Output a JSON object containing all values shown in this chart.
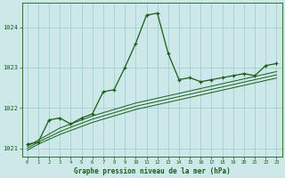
{
  "bg_color": "#cce8e8",
  "grid_color": "#99cccc",
  "line_color": "#1a5c1a",
  "title": "Graphe pression niveau de la mer (hPa)",
  "xlim": [
    -0.5,
    23.5
  ],
  "ylim": [
    1020.8,
    1024.6
  ],
  "yticks": [
    1021,
    1022,
    1023,
    1024
  ],
  "xticks": [
    0,
    1,
    2,
    3,
    4,
    5,
    6,
    7,
    8,
    9,
    10,
    11,
    12,
    13,
    14,
    15,
    16,
    17,
    18,
    19,
    20,
    21,
    22,
    23
  ],
  "series_main": [
    1021.1,
    1021.15,
    1021.7,
    1021.75,
    1021.6,
    1021.75,
    1021.85,
    1022.4,
    1022.45,
    1023.0,
    1023.6,
    1024.3,
    1024.35,
    1023.35,
    1022.7,
    1022.75,
    1022.65,
    1022.7,
    1022.75,
    1022.8,
    1022.85,
    1022.8,
    1023.05,
    1023.1
  ],
  "series_trend1": [
    1021.05,
    1021.2,
    1021.35,
    1021.5,
    1021.6,
    1021.7,
    1021.8,
    1021.88,
    1021.96,
    1022.04,
    1022.12,
    1022.18,
    1022.24,
    1022.3,
    1022.36,
    1022.42,
    1022.48,
    1022.54,
    1022.6,
    1022.66,
    1022.72,
    1022.78,
    1022.84,
    1022.9
  ],
  "series_trend2": [
    1021.0,
    1021.15,
    1021.28,
    1021.41,
    1021.52,
    1021.62,
    1021.72,
    1021.8,
    1021.88,
    1021.96,
    1022.04,
    1022.1,
    1022.16,
    1022.22,
    1022.28,
    1022.34,
    1022.4,
    1022.46,
    1022.52,
    1022.58,
    1022.64,
    1022.7,
    1022.76,
    1022.82
  ],
  "series_trend3": [
    1020.95,
    1021.1,
    1021.22,
    1021.34,
    1021.44,
    1021.54,
    1021.64,
    1021.72,
    1021.8,
    1021.88,
    1021.96,
    1022.02,
    1022.08,
    1022.14,
    1022.2,
    1022.26,
    1022.32,
    1022.38,
    1022.44,
    1022.5,
    1022.56,
    1022.62,
    1022.68,
    1022.74
  ]
}
